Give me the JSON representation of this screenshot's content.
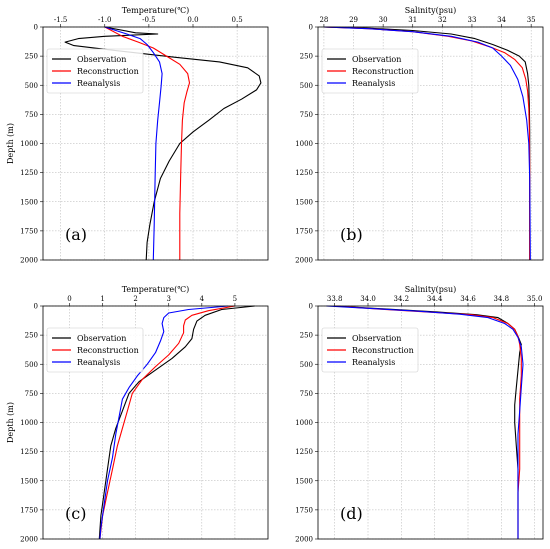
{
  "chart_data": [
    {
      "type": "line",
      "panel": "(a)",
      "title": "Temperature(℃)",
      "ylabel": "Depth (m)",
      "xlim": [
        -1.7,
        0.85
      ],
      "ylim": [
        0,
        2000
      ],
      "y_inverted": true,
      "x_axis_position": "top",
      "xticks": [
        -1.5,
        -1.0,
        -0.5,
        0.0,
        0.5
      ],
      "xtick_labels": [
        "-1.5",
        "-1.0",
        "-0.5",
        "0.0",
        "0.5"
      ],
      "yticks": [
        0,
        250,
        500,
        750,
        1000,
        1250,
        1500,
        1750,
        2000
      ],
      "grid": true,
      "legend": "top-left",
      "series": [
        {
          "name": "Observation",
          "color": "#000000",
          "points": [
            [
              -1.0,
              0
            ],
            [
              -0.65,
              50
            ],
            [
              -0.4,
              60
            ],
            [
              -1.0,
              80
            ],
            [
              -1.3,
              100
            ],
            [
              -1.45,
              130
            ],
            [
              -1.35,
              160
            ],
            [
              -0.9,
              200
            ],
            [
              -0.2,
              260
            ],
            [
              0.3,
              300
            ],
            [
              0.62,
              350
            ],
            [
              0.75,
              420
            ],
            [
              0.77,
              480
            ],
            [
              0.72,
              540
            ],
            [
              0.55,
              620
            ],
            [
              0.35,
              700
            ],
            [
              0.18,
              800
            ],
            [
              0.0,
              900
            ],
            [
              -0.15,
              1000
            ],
            [
              -0.27,
              1150
            ],
            [
              -0.37,
              1300
            ],
            [
              -0.44,
              1500
            ],
            [
              -0.49,
              1700
            ],
            [
              -0.52,
              1850
            ],
            [
              -0.53,
              2000
            ]
          ]
        },
        {
          "name": "Reconstruction",
          "color": "#ff0000",
          "points": [
            [
              -1.0,
              0
            ],
            [
              -0.8,
              80
            ],
            [
              -0.62,
              130
            ],
            [
              -0.45,
              180
            ],
            [
              -0.3,
              250
            ],
            [
              -0.15,
              320
            ],
            [
              -0.06,
              400
            ],
            [
              -0.04,
              480
            ],
            [
              -0.07,
              560
            ],
            [
              -0.1,
              650
            ],
            [
              -0.12,
              800
            ],
            [
              -0.13,
              1000
            ],
            [
              -0.14,
              1300
            ],
            [
              -0.15,
              1600
            ],
            [
              -0.15,
              2000
            ]
          ]
        },
        {
          "name": "Reanalysis",
          "color": "#0000ff",
          "points": [
            [
              -1.0,
              0
            ],
            [
              -0.75,
              60
            ],
            [
              -0.6,
              100
            ],
            [
              -0.52,
              150
            ],
            [
              -0.45,
              220
            ],
            [
              -0.38,
              300
            ],
            [
              -0.35,
              400
            ],
            [
              -0.36,
              500
            ],
            [
              -0.38,
              650
            ],
            [
              -0.4,
              800
            ],
            [
              -0.42,
              1000
            ],
            [
              -0.43,
              1300
            ],
            [
              -0.44,
              1700
            ],
            [
              -0.45,
              2000
            ]
          ]
        }
      ]
    },
    {
      "type": "line",
      "panel": "(b)",
      "title": "Salinity(psu)",
      "ylabel": "",
      "xlim": [
        27.8,
        35.4
      ],
      "ylim": [
        0,
        2000
      ],
      "y_inverted": true,
      "x_axis_position": "top",
      "xticks": [
        28,
        29,
        30,
        31,
        32,
        33,
        34,
        35
      ],
      "xtick_labels": [
        "28",
        "29",
        "30",
        "31",
        "32",
        "33",
        "34",
        "35"
      ],
      "yticks": [
        0,
        250,
        500,
        750,
        1000,
        1250,
        1500,
        1750,
        2000
      ],
      "grid": true,
      "legend": "top-left",
      "series": [
        {
          "name": "Observation",
          "color": "#000000",
          "points": [
            [
              28.0,
              0
            ],
            [
              29.5,
              10
            ],
            [
              31.0,
              30
            ],
            [
              32.3,
              60
            ],
            [
              33.1,
              100
            ],
            [
              33.7,
              150
            ],
            [
              34.2,
              200
            ],
            [
              34.6,
              250
            ],
            [
              34.8,
              300
            ],
            [
              34.88,
              400
            ],
            [
              34.92,
              500
            ],
            [
              34.94,
              700
            ],
            [
              34.95,
              900
            ],
            [
              34.95,
              1200
            ],
            [
              34.95,
              1600
            ],
            [
              34.95,
              2000
            ]
          ]
        },
        {
          "name": "Reconstruction",
          "color": "#ff0000",
          "points": [
            [
              28.0,
              0
            ],
            [
              29.5,
              15
            ],
            [
              31.0,
              40
            ],
            [
              32.2,
              80
            ],
            [
              33.0,
              120
            ],
            [
              33.6,
              170
            ],
            [
              34.1,
              220
            ],
            [
              34.45,
              280
            ],
            [
              34.7,
              350
            ],
            [
              34.82,
              450
            ],
            [
              34.88,
              550
            ],
            [
              34.92,
              700
            ],
            [
              34.94,
              900
            ],
            [
              34.95,
              1200
            ],
            [
              34.95,
              1600
            ],
            [
              34.95,
              2000
            ]
          ]
        },
        {
          "name": "Reanalysis",
          "color": "#0000ff",
          "points": [
            [
              28.0,
              0
            ],
            [
              29.5,
              15
            ],
            [
              31.0,
              40
            ],
            [
              32.3,
              80
            ],
            [
              33.2,
              130
            ],
            [
              33.7,
              180
            ],
            [
              34.0,
              250
            ],
            [
              34.3,
              330
            ],
            [
              34.55,
              450
            ],
            [
              34.72,
              600
            ],
            [
              34.85,
              800
            ],
            [
              34.92,
              1000
            ],
            [
              34.95,
              1300
            ],
            [
              34.96,
              1600
            ],
            [
              34.97,
              2000
            ]
          ]
        }
      ]
    },
    {
      "type": "line",
      "panel": "(c)",
      "title": "Temperature(℃)",
      "ylabel": "Depth (m)",
      "xlim": [
        -0.8,
        6.0
      ],
      "ylim": [
        0,
        2000
      ],
      "y_inverted": true,
      "x_axis_position": "top",
      "xticks": [
        0,
        1,
        2,
        3,
        4,
        5
      ],
      "xtick_labels": [
        "0",
        "1",
        "2",
        "3",
        "4",
        "5"
      ],
      "yticks": [
        0,
        250,
        500,
        750,
        1000,
        1250,
        1500,
        1750,
        2000
      ],
      "grid": true,
      "legend": "top-left",
      "series": [
        {
          "name": "Observation",
          "color": "#000000",
          "points": [
            [
              5.6,
              0
            ],
            [
              4.6,
              30
            ],
            [
              4.1,
              80
            ],
            [
              3.85,
              130
            ],
            [
              3.75,
              200
            ],
            [
              3.7,
              280
            ],
            [
              3.5,
              350
            ],
            [
              3.1,
              450
            ],
            [
              2.6,
              550
            ],
            [
              2.1,
              650
            ],
            [
              1.8,
              750
            ],
            [
              1.6,
              900
            ],
            [
              1.4,
              1050
            ],
            [
              1.25,
              1200
            ],
            [
              1.15,
              1400
            ],
            [
              1.05,
              1600
            ],
            [
              0.95,
              1800
            ],
            [
              0.9,
              2000
            ]
          ]
        },
        {
          "name": "Reconstruction",
          "color": "#ff0000",
          "points": [
            [
              5.0,
              0
            ],
            [
              4.2,
              40
            ],
            [
              3.7,
              80
            ],
            [
              3.5,
              120
            ],
            [
              3.45,
              170
            ],
            [
              3.45,
              230
            ],
            [
              3.3,
              320
            ],
            [
              3.0,
              420
            ],
            [
              2.6,
              520
            ],
            [
              2.2,
              630
            ],
            [
              1.9,
              750
            ],
            [
              1.75,
              900
            ],
            [
              1.6,
              1050
            ],
            [
              1.45,
              1200
            ],
            [
              1.3,
              1400
            ],
            [
              1.15,
              1600
            ],
            [
              1.0,
              1800
            ],
            [
              0.92,
              2000
            ]
          ]
        },
        {
          "name": "Reanalysis",
          "color": "#0000ff",
          "points": [
            [
              4.8,
              0
            ],
            [
              3.6,
              30
            ],
            [
              3.0,
              60
            ],
            [
              2.85,
              100
            ],
            [
              2.8,
              150
            ],
            [
              2.85,
              220
            ],
            [
              2.75,
              300
            ],
            [
              2.6,
              400
            ],
            [
              2.35,
              500
            ],
            [
              2.05,
              600
            ],
            [
              1.8,
              700
            ],
            [
              1.6,
              800
            ],
            [
              1.5,
              950
            ],
            [
              1.4,
              1100
            ],
            [
              1.3,
              1300
            ],
            [
              1.15,
              1500
            ],
            [
              1.05,
              1700
            ],
            [
              0.95,
              1900
            ],
            [
              0.92,
              2000
            ]
          ]
        }
      ]
    },
    {
      "type": "line",
      "panel": "(d)",
      "title": "Salinity(psu)",
      "ylabel": "",
      "xlim": [
        33.7,
        35.05
      ],
      "ylim": [
        0,
        2000
      ],
      "y_inverted": true,
      "x_axis_position": "top",
      "xticks": [
        33.8,
        34.0,
        34.2,
        34.4,
        34.6,
        34.8,
        35.0
      ],
      "xtick_labels": [
        "33.8",
        "34.0",
        "34.2",
        "34.4",
        "34.6",
        "34.8",
        "35.0"
      ],
      "yticks": [
        0,
        250,
        500,
        750,
        1000,
        1250,
        1500,
        1750,
        2000
      ],
      "grid": true,
      "legend": "top-left",
      "series": [
        {
          "name": "Observation",
          "color": "#000000",
          "points": [
            [
              33.8,
              0
            ],
            [
              34.1,
              25
            ],
            [
              34.4,
              50
            ],
            [
              34.65,
              75
            ],
            [
              34.78,
              100
            ],
            [
              34.84,
              150
            ],
            [
              34.88,
              200
            ],
            [
              34.9,
              260
            ],
            [
              34.92,
              330
            ],
            [
              34.91,
              400
            ],
            [
              34.9,
              550
            ],
            [
              34.89,
              700
            ],
            [
              34.88,
              850
            ],
            [
              34.88,
              1000
            ],
            [
              34.89,
              1200
            ],
            [
              34.9,
              1400
            ],
            [
              34.9,
              1600
            ],
            [
              34.9,
              1800
            ],
            [
              34.9,
              2000
            ]
          ]
        },
        {
          "name": "Reconstruction",
          "color": "#ff0000",
          "points": [
            [
              33.8,
              0
            ],
            [
              34.1,
              30
            ],
            [
              34.4,
              55
            ],
            [
              34.62,
              75
            ],
            [
              34.75,
              100
            ],
            [
              34.84,
              150
            ],
            [
              34.88,
              200
            ],
            [
              34.9,
              260
            ],
            [
              34.91,
              330
            ],
            [
              34.92,
              450
            ],
            [
              34.92,
              600
            ],
            [
              34.91,
              800
            ],
            [
              34.91,
              1000
            ],
            [
              34.91,
              1200
            ],
            [
              34.91,
              1400
            ],
            [
              34.9,
              1600
            ],
            [
              34.9,
              1800
            ],
            [
              34.9,
              2000
            ]
          ]
        },
        {
          "name": "Reanalysis",
          "color": "#0000ff",
          "points": [
            [
              33.75,
              0
            ],
            [
              34.0,
              20
            ],
            [
              34.3,
              45
            ],
            [
              34.55,
              70
            ],
            [
              34.72,
              100
            ],
            [
              34.82,
              150
            ],
            [
              34.87,
              200
            ],
            [
              34.9,
              270
            ],
            [
              34.92,
              350
            ],
            [
              34.93,
              500
            ],
            [
              34.92,
              700
            ],
            [
              34.91,
              900
            ],
            [
              34.9,
              1100
            ],
            [
              34.9,
              1300
            ],
            [
              34.9,
              1500
            ],
            [
              34.9,
              1700
            ],
            [
              34.9,
              2000
            ]
          ]
        }
      ]
    }
  ]
}
